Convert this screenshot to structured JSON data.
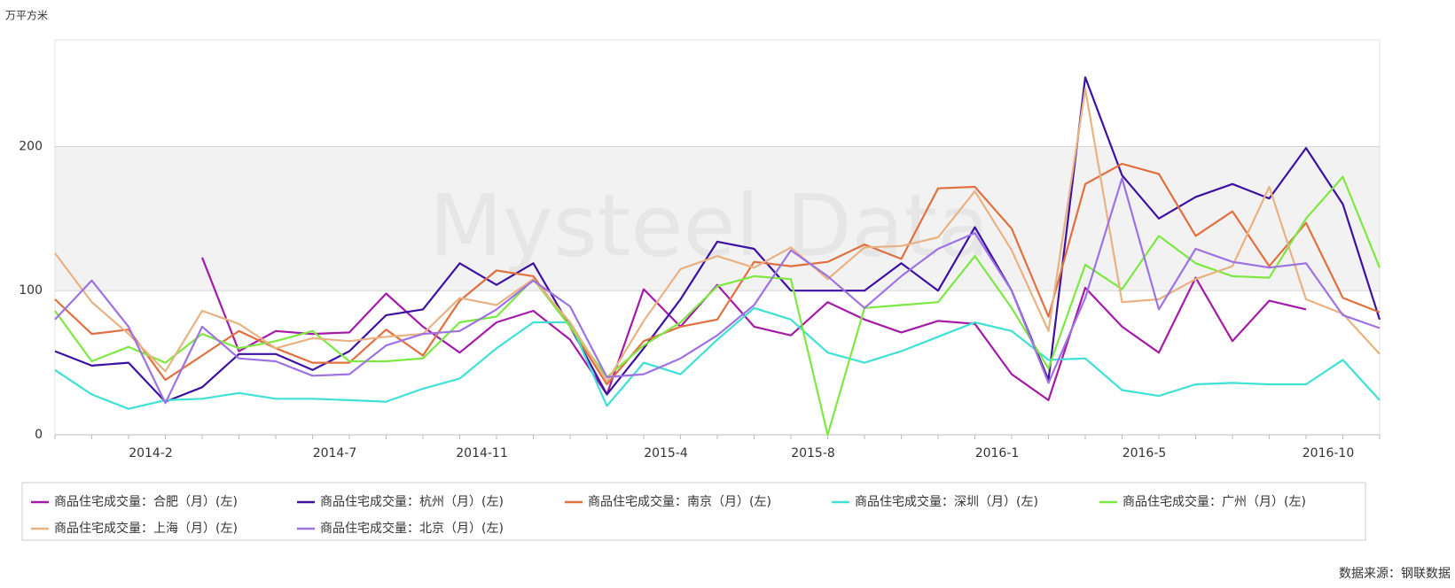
{
  "chart_data": {
    "type": "line",
    "y_label": "万平方米",
    "watermark": "Mysteel Data",
    "source": "数据来源：钢联数据",
    "categories": [
      null,
      null,
      "2014-2",
      null,
      null,
      null,
      null,
      "2014-7",
      null,
      null,
      null,
      "2014-11",
      null,
      null,
      null,
      null,
      "2015-4",
      null,
      null,
      null,
      "2015-8",
      null,
      null,
      null,
      null,
      "2016-1",
      null,
      null,
      null,
      "2016-5",
      null,
      null,
      null,
      null,
      "2016-10",
      null,
      null
    ],
    "ylim": [
      0,
      274
    ],
    "yticks": [
      0,
      100,
      200
    ],
    "grid": true,
    "series": [
      {
        "name": "商品住宅成交量：合肥（月）(左)",
        "color": "#a31ba8",
        "values": [
          null,
          null,
          null,
          null,
          123,
          58,
          72,
          70,
          71,
          98,
          75,
          57,
          78,
          86,
          66,
          28,
          101,
          75,
          104,
          75,
          69,
          92,
          80,
          71,
          79,
          77,
          42,
          24,
          102,
          75,
          57,
          109,
          65,
          93,
          87,
          null,
          null
        ]
      },
      {
        "name": "商品住宅成交量：杭州（月）(左)",
        "color": "#3d11a3",
        "values": [
          58,
          48,
          50,
          23,
          33,
          56,
          56,
          45,
          58,
          83,
          87,
          119,
          104,
          119,
          75,
          28,
          60,
          94,
          134,
          129,
          100,
          100,
          100,
          119,
          100,
          144,
          100,
          38,
          248,
          180,
          150,
          165,
          174,
          164,
          199,
          160,
          80
        ]
      },
      {
        "name": "商品住宅成交量：南京（月）(左)",
        "color": "#e0703f",
        "values": [
          94,
          70,
          73,
          38,
          55,
          72,
          60,
          50,
          50,
          73,
          55,
          93,
          114,
          110,
          75,
          35,
          65,
          75,
          80,
          120,
          117,
          120,
          132,
          122,
          171,
          172,
          143,
          82,
          174,
          188,
          181,
          138,
          155,
          117,
          147,
          95,
          85
        ]
      },
      {
        "name": "商品住宅成交量：深圳（月）(左)",
        "color": "#3fe0d6",
        "values": [
          45,
          28,
          18,
          24,
          25,
          29,
          25,
          25,
          24,
          23,
          32,
          39,
          60,
          78,
          78,
          20,
          50,
          42,
          66,
          88,
          80,
          57,
          50,
          58,
          68,
          78,
          72,
          52,
          53,
          31,
          27,
          35,
          36,
          35,
          35,
          52,
          24
        ]
      },
      {
        "name": "商品住宅成交量：广州（月）(左)",
        "color": "#7ee843",
        "values": [
          86,
          51,
          61,
          50,
          70,
          60,
          65,
          72,
          51,
          51,
          53,
          78,
          82,
          108,
          75,
          40,
          62,
          78,
          103,
          110,
          108,
          0,
          88,
          90,
          92,
          124,
          88,
          46,
          118,
          101,
          138,
          119,
          110,
          109,
          150,
          179,
          116
        ]
      },
      {
        "name": "商品住宅成交量：上海（月）(左)",
        "color": "#e8b283",
        "values": [
          126,
          92,
          70,
          44,
          86,
          77,
          60,
          67,
          65,
          68,
          70,
          95,
          90,
          108,
          78,
          37,
          79,
          115,
          124,
          116,
          130,
          108,
          130,
          131,
          137,
          169,
          128,
          72,
          240,
          92,
          94,
          108,
          117,
          172,
          94,
          84,
          56
        ]
      },
      {
        "name": "商品住宅成交量：北京（月）(左)",
        "color": "#9e72e3",
        "values": [
          80,
          107,
          75,
          22,
          75,
          53,
          51,
          41,
          42,
          62,
          70,
          72,
          87,
          107,
          89,
          40,
          42,
          53,
          69,
          90,
          128,
          110,
          88,
          110,
          129,
          140,
          100,
          36,
          95,
          178,
          87,
          129,
          120,
          116,
          119,
          83,
          74
        ]
      }
    ]
  }
}
